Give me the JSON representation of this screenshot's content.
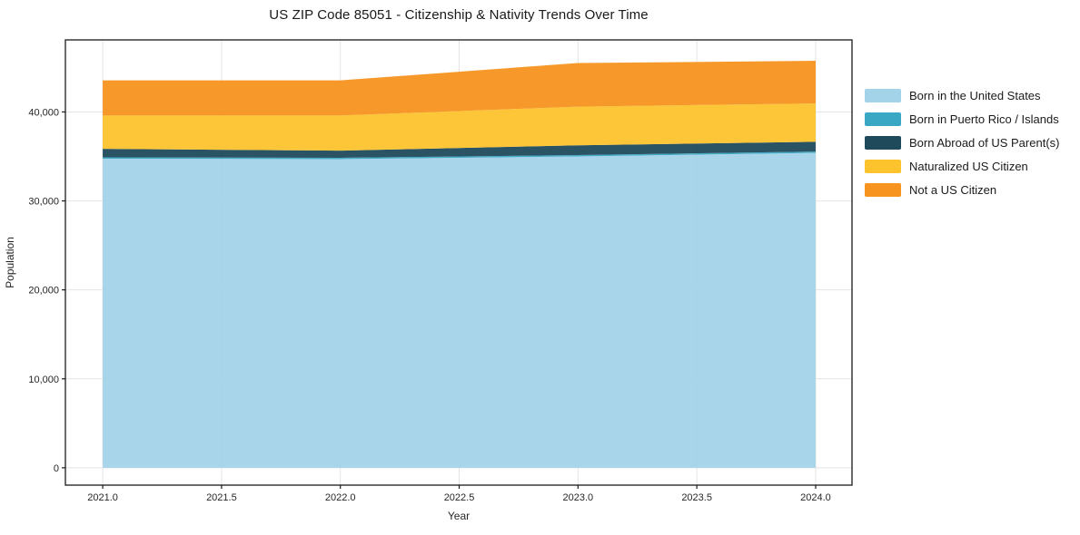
{
  "chart_data": {
    "type": "area",
    "stacked": true,
    "title": "US ZIP Code 85051 - Citizenship & Nativity Trends Over Time",
    "xlabel": "Year",
    "ylabel": "Population",
    "grid": true,
    "legend_position": "right",
    "x": [
      2021,
      2022,
      2023,
      2024
    ],
    "series": [
      {
        "name": "Born in the United States",
        "color": "#a3d3e8",
        "values": [
          34750,
          34700,
          35000,
          35400
        ]
      },
      {
        "name": "Born in Puerto Rico / Islands",
        "color": "#3aa7c4",
        "values": [
          150,
          150,
          150,
          150
        ]
      },
      {
        "name": "Born Abroad of US Parent(s)",
        "color": "#1f4a5c",
        "values": [
          950,
          800,
          1100,
          1100
        ]
      },
      {
        "name": "Naturalized US Citizen",
        "color": "#fcc32d",
        "values": [
          3750,
          3950,
          4350,
          4300
        ]
      },
      {
        "name": "Not a US Citizen",
        "color": "#f7941f",
        "values": [
          3950,
          3950,
          4900,
          4800
        ]
      }
    ],
    "xlim": [
      2020.843,
      2024.153
    ],
    "ylim": [
      -1950,
      48100
    ],
    "xticks": [
      {
        "v": 2021.0,
        "label": "2021.0"
      },
      {
        "v": 2021.5,
        "label": "2021.5"
      },
      {
        "v": 2022.0,
        "label": "2022.0"
      },
      {
        "v": 2022.5,
        "label": "2022.5"
      },
      {
        "v": 2023.0,
        "label": "2023.0"
      },
      {
        "v": 2023.5,
        "label": "2023.5"
      },
      {
        "v": 2024.0,
        "label": "2024.0"
      }
    ],
    "yticks": [
      {
        "v": 0,
        "label": "0"
      },
      {
        "v": 10000,
        "label": "10,000"
      },
      {
        "v": 20000,
        "label": "20,000"
      },
      {
        "v": 30000,
        "label": "30,000"
      },
      {
        "v": 40000,
        "label": "40,000"
      }
    ],
    "colors": {
      "gridline": "#e4e4e4",
      "spine": "#1a1a1a",
      "tick_label": "#262626"
    }
  }
}
